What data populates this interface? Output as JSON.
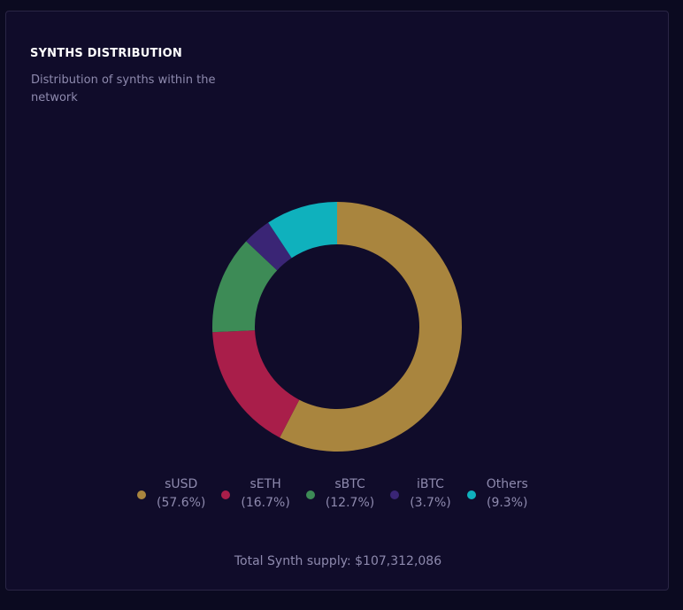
{
  "card": {
    "title": "SYNTHS DISTRIBUTION",
    "subtitle": "Distribution of synths within the network"
  },
  "chart_data": {
    "type": "pie",
    "variant": "donut",
    "title": "SYNTHS DISTRIBUTION",
    "subtitle": "Distribution of synths within the network",
    "legend_position": "bottom",
    "slices": [
      {
        "label": "sUSD",
        "value": 57.6,
        "pct_label": "(57.6%)",
        "color": "#a9853e"
      },
      {
        "label": "sETH",
        "value": 16.7,
        "pct_label": "(16.7%)",
        "color": "#a91e4a"
      },
      {
        "label": "sBTC",
        "value": 12.7,
        "pct_label": "(12.7%)",
        "color": "#3d8b56"
      },
      {
        "label": "iBTC",
        "value": 3.7,
        "pct_label": "(3.7%)",
        "color": "#3a2575"
      },
      {
        "label": "Others",
        "value": 9.3,
        "pct_label": "(9.3%)",
        "color": "#0fb1bd"
      }
    ]
  },
  "footer": {
    "total_label": "Total Synth supply: $107,312,086"
  }
}
